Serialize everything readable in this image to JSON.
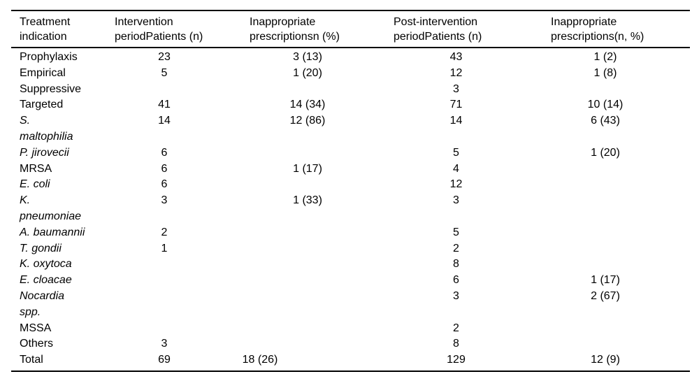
{
  "colors": {
    "text": "#000000",
    "background": "#ffffff",
    "rule": "#000000"
  },
  "table": {
    "headers": [
      {
        "label": "Treatment\nindication"
      },
      {
        "label": "Intervention\nperiodPatients (n)"
      },
      {
        "label": "Inappropriate\nprescriptionsn (%)"
      },
      {
        "label": "Post-intervention\nperiodPatients (n)"
      },
      {
        "label": "Inappropriate\nprescriptions(n, %)"
      }
    ],
    "rows": [
      {
        "label": "Prophylaxis",
        "italic": false,
        "total": false,
        "cells": [
          "23",
          "3 (13)",
          "43",
          "1 (2)"
        ]
      },
      {
        "label": "Empirical",
        "italic": false,
        "total": false,
        "cells": [
          "5",
          "1 (20)",
          "12",
          "1 (8)"
        ]
      },
      {
        "label": "Suppressive",
        "italic": false,
        "total": false,
        "cells": [
          "",
          "",
          "3",
          ""
        ]
      },
      {
        "label": "Targeted",
        "italic": false,
        "total": false,
        "cells": [
          "41",
          "14 (34)",
          "71",
          "10 (14)"
        ]
      },
      {
        "label": "S.\nmaltophilia",
        "italic": true,
        "total": false,
        "cells": [
          "14",
          "12 (86)",
          "14",
          "6 (43)"
        ]
      },
      {
        "label": "P. jirovecii",
        "italic": true,
        "total": false,
        "cells": [
          "6",
          "",
          "5",
          "1 (20)"
        ]
      },
      {
        "label": "MRSA",
        "italic": false,
        "total": false,
        "cells": [
          "6",
          "1 (17)",
          "4",
          ""
        ]
      },
      {
        "label": "E. coli",
        "italic": true,
        "total": false,
        "cells": [
          "6",
          "",
          "12",
          ""
        ]
      },
      {
        "label": "K.\npneumoniae",
        "italic": true,
        "total": false,
        "cells": [
          "3",
          "1 (33)",
          "3",
          ""
        ]
      },
      {
        "label": "A. baumannii",
        "italic": true,
        "total": false,
        "cells": [
          "2",
          "",
          "5",
          ""
        ]
      },
      {
        "label": "T. gondii",
        "italic": true,
        "total": false,
        "cells": [
          "1",
          "",
          "2",
          ""
        ]
      },
      {
        "label": "K. oxytoca",
        "italic": true,
        "total": false,
        "cells": [
          "",
          "",
          "8",
          ""
        ]
      },
      {
        "label": "E. cloacae",
        "italic": true,
        "total": false,
        "cells": [
          "",
          "",
          "6",
          "1 (17)"
        ]
      },
      {
        "label": "Nocardia\nspp.",
        "italic": true,
        "total": false,
        "cells": [
          "",
          "",
          "3",
          "2 (67)"
        ]
      },
      {
        "label": "MSSA",
        "italic": false,
        "total": false,
        "cells": [
          "",
          "",
          "2",
          ""
        ]
      },
      {
        "label": "Others",
        "italic": false,
        "total": false,
        "cells": [
          "3",
          "",
          "8",
          ""
        ]
      },
      {
        "label": "Total",
        "italic": false,
        "total": true,
        "cells": [
          "69",
          "18 (26)",
          "129",
          "12 (9)"
        ]
      }
    ]
  }
}
